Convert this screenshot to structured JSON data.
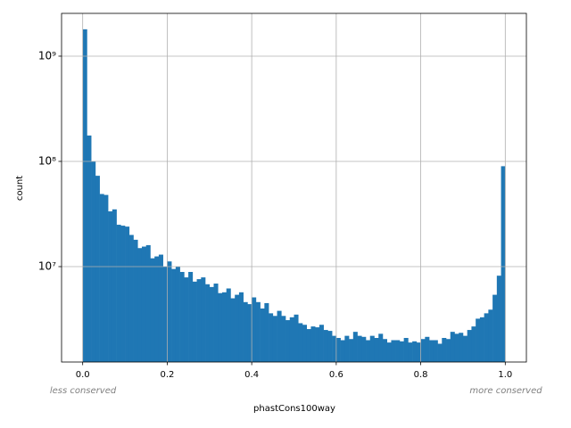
{
  "chart_data": {
    "type": "histogram",
    "xlabel": "phastCons100way",
    "ylabel": "count",
    "annotations": [
      "less conserved",
      "more conserved"
    ],
    "color": "#1f77b4",
    "log_y": true,
    "grid": true,
    "xlim": [
      -0.05,
      1.05
    ],
    "ylim": [
      1240000,
      2550000000
    ],
    "xticks": [
      {
        "value": 0,
        "label": "0.0"
      },
      0.2,
      0.4,
      0.6,
      0.8,
      {
        "value": 1,
        "label": "1.0"
      }
    ],
    "yticks": [
      {
        "value": 10000000,
        "label": "10⁷"
      },
      {
        "value": 100000000,
        "label": "10⁸"
      },
      {
        "value": 1000000000,
        "label": "10⁹"
      }
    ],
    "bins": [
      0,
      0.01,
      0.02,
      0.03,
      0.04,
      0.05,
      0.06,
      0.07,
      0.08,
      0.09,
      0.1,
      0.11,
      0.12,
      0.13,
      0.14,
      0.15,
      0.16,
      0.17,
      0.18,
      0.19,
      0.2,
      0.21,
      0.22,
      0.23,
      0.24,
      0.25,
      0.26,
      0.27,
      0.28,
      0.29,
      0.3,
      0.31,
      0.32,
      0.33,
      0.34,
      0.35,
      0.36,
      0.37,
      0.38,
      0.39,
      0.4,
      0.41,
      0.42,
      0.43,
      0.44,
      0.45,
      0.46,
      0.47,
      0.48,
      0.49,
      0.5,
      0.51,
      0.52,
      0.53,
      0.54,
      0.55,
      0.56,
      0.57,
      0.58,
      0.59,
      0.6,
      0.61,
      0.62,
      0.63,
      0.64,
      0.65,
      0.66,
      0.67,
      0.68,
      0.69,
      0.7,
      0.71,
      0.72,
      0.73,
      0.74,
      0.75,
      0.76,
      0.77,
      0.78,
      0.79,
      0.8,
      0.81,
      0.82,
      0.83,
      0.84,
      0.85,
      0.86,
      0.87,
      0.88,
      0.89,
      0.9,
      0.91,
      0.92,
      0.93,
      0.94,
      0.95,
      0.96,
      0.97,
      0.98,
      0.99,
      1
    ],
    "values": [
      1800000000,
      176000000,
      100000000,
      73000000,
      49000000,
      48000000,
      33500000,
      35000000,
      25000000,
      24500000,
      24000000,
      20000000,
      18000000,
      15000000,
      15500000,
      16000000,
      12000000,
      12500000,
      13000000,
      10000000,
      11200000,
      9500000,
      10000000,
      8900000,
      7900000,
      8900000,
      7200000,
      7600000,
      7900000,
      6800000,
      6400000,
      6900000,
      5600000,
      5700000,
      6200000,
      5000000,
      5400000,
      5700000,
      4600000,
      4400000,
      5100000,
      4600000,
      4000000,
      4500000,
      3600000,
      3400000,
      3800000,
      3400000,
      3100000,
      3300000,
      3500000,
      2900000,
      2800000,
      2550000,
      2700000,
      2650000,
      2800000,
      2500000,
      2450000,
      2200000,
      2100000,
      2000000,
      2200000,
      2050000,
      2400000,
      2200000,
      2150000,
      2000000,
      2200000,
      2100000,
      2300000,
      2050000,
      1900000,
      2000000,
      2000000,
      1950000,
      2100000,
      1900000,
      1950000,
      1900000,
      2050000,
      2150000,
      2000000,
      2000000,
      1850000,
      2100000,
      2050000,
      2400000,
      2300000,
      2350000,
      2200000,
      2500000,
      2700000,
      3200000,
      3300000,
      3600000,
      3900000,
      5400000,
      8200000,
      90000000
    ]
  }
}
